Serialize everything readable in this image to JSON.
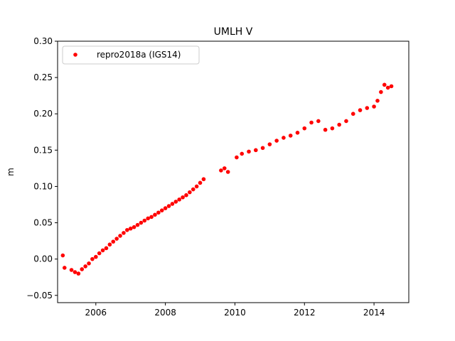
{
  "chart_data": {
    "type": "scatter",
    "title": "UMLH V",
    "xlabel": "",
    "ylabel": "m",
    "xlim": [
      2004.9,
      2015.0
    ],
    "ylim": [
      -0.06,
      0.3
    ],
    "x_ticks": [
      2006,
      2008,
      2010,
      2012,
      2014
    ],
    "x_tick_labels": [
      "2006",
      "2008",
      "2010",
      "2012",
      "2014"
    ],
    "y_ticks": [
      -0.05,
      0.0,
      0.05,
      0.1,
      0.15,
      0.2,
      0.25,
      0.3
    ],
    "y_tick_labels": [
      "−0.05",
      "0.00",
      "0.05",
      "0.10",
      "0.15",
      "0.20",
      "0.25",
      "0.30"
    ],
    "grid": false,
    "legend_position": "top-left",
    "series": [
      {
        "name": "repro2018a (IGS14)",
        "color": "#ff0000",
        "marker": "circle",
        "x": [
          2005.05,
          2005.1,
          2005.3,
          2005.4,
          2005.5,
          2005.6,
          2005.7,
          2005.8,
          2005.9,
          2006.0,
          2006.1,
          2006.2,
          2006.3,
          2006.4,
          2006.5,
          2006.6,
          2006.7,
          2006.8,
          2006.9,
          2007.0,
          2007.1,
          2007.2,
          2007.3,
          2007.4,
          2007.5,
          2007.6,
          2007.7,
          2007.8,
          2007.9,
          2008.0,
          2008.1,
          2008.2,
          2008.3,
          2008.4,
          2008.5,
          2008.6,
          2008.7,
          2008.8,
          2008.9,
          2009.0,
          2009.1,
          2009.6,
          2009.7,
          2009.8,
          2010.05,
          2010.2,
          2010.4,
          2010.6,
          2010.8,
          2011.0,
          2011.2,
          2011.4,
          2011.6,
          2011.8,
          2012.0,
          2012.2,
          2012.4,
          2012.6,
          2012.8,
          2013.0,
          2013.2,
          2013.4,
          2013.6,
          2013.8,
          2014.0,
          2014.1,
          2014.2,
          2014.3,
          2014.4,
          2014.5
        ],
        "y": [
          0.005,
          -0.012,
          -0.015,
          -0.018,
          -0.02,
          -0.014,
          -0.01,
          -0.006,
          0.0,
          0.003,
          0.008,
          0.012,
          0.015,
          0.02,
          0.024,
          0.028,
          0.032,
          0.036,
          0.04,
          0.042,
          0.044,
          0.047,
          0.05,
          0.053,
          0.056,
          0.058,
          0.061,
          0.064,
          0.067,
          0.07,
          0.073,
          0.076,
          0.079,
          0.082,
          0.085,
          0.088,
          0.092,
          0.096,
          0.1,
          0.105,
          0.11,
          0.122,
          0.125,
          0.12,
          0.14,
          0.145,
          0.148,
          0.15,
          0.153,
          0.158,
          0.163,
          0.167,
          0.17,
          0.174,
          0.18,
          0.188,
          0.19,
          0.178,
          0.18,
          0.185,
          0.19,
          0.2,
          0.205,
          0.208,
          0.21,
          0.218,
          0.23,
          0.24,
          0.236,
          0.238
        ]
      }
    ]
  }
}
